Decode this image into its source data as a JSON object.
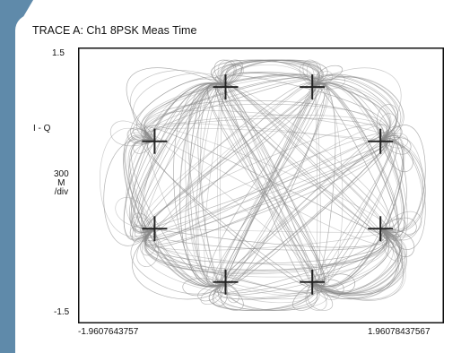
{
  "trace_title": "TRACE A: Ch1 8PSK Meas Time",
  "y_axis": {
    "label": "I - Q",
    "max_label": "1.5",
    "min_label": "-1.5",
    "scale_line1": "300",
    "scale_line2": "M",
    "scale_line3": "/div"
  },
  "x_axis": {
    "min_label": "-1.9607643757",
    "max_label": "1.96078437567"
  },
  "colors": {
    "sidebar": "#5f8aaa",
    "trace": "#8a8a8a",
    "constellation_point": "#222222"
  },
  "chart_data": {
    "type": "scatter",
    "title": "TRACE A: Ch1 8PSK Meas Time",
    "ylabel": "I - Q",
    "xlim": [
      -1.9607643757,
      1.96078437567
    ],
    "ylim": [
      -1.5,
      1.5
    ],
    "grid": false,
    "constellation_points": [
      {
        "x": -0.38,
        "y": 1.07
      },
      {
        "x": 0.55,
        "y": 1.07
      },
      {
        "x": -1.14,
        "y": 0.48
      },
      {
        "x": 1.28,
        "y": 0.48
      },
      {
        "x": -1.14,
        "y": -0.47
      },
      {
        "x": 1.28,
        "y": -0.47
      },
      {
        "x": -0.38,
        "y": -1.05
      },
      {
        "x": 0.55,
        "y": -1.05
      }
    ]
  }
}
